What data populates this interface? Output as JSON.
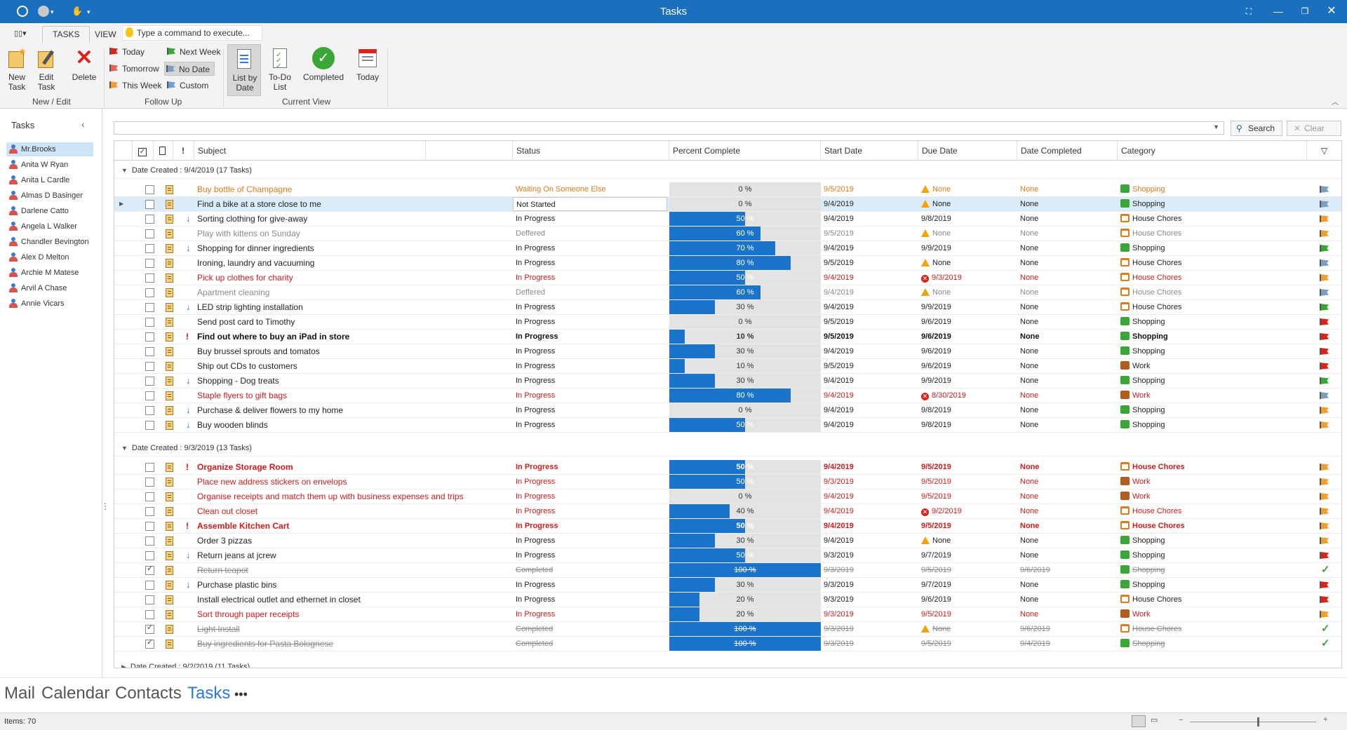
{
  "window": {
    "title": "Tasks"
  },
  "ribbon": {
    "tabs": [
      "TASKS",
      "VIEW"
    ],
    "command_placeholder": "Type a command to execute...",
    "new_task": "New Task",
    "edit_task": "Edit Task",
    "delete": "Delete",
    "group_new_edit": "New / Edit",
    "today": "Today",
    "tomorrow": "Tomorrow",
    "this_week": "This Week",
    "next_week": "Next Week",
    "no_date": "No Date",
    "custom": "Custom",
    "group_follow_up": "Follow Up",
    "list_by_date": "List by Date",
    "todo_list": "To-Do List",
    "completed": "Completed",
    "today_view": "Today",
    "group_current_view": "Current View"
  },
  "nav": {
    "header": "Tasks",
    "people": [
      "Mr.Brooks",
      "Anita W Ryan",
      "Anita L Cardle",
      "Almas D Basinger",
      "Darlene Catto",
      "Angela L Walker",
      "Chandler Bevington",
      "Alex D Melton",
      "Archie M Matese",
      "Arvil A Chase",
      "Annie Vicars"
    ],
    "selected_index": 0
  },
  "search": {
    "search_label": "Search",
    "clear_label": "Clear"
  },
  "columns": {
    "subject": "Subject",
    "status": "Status",
    "percent": "Percent Complete",
    "start": "Start Date",
    "due": "Due Date",
    "completed": "Date Completed",
    "category": "Category"
  },
  "colors": {
    "accent": "#1a6fbf",
    "progress": "#1b74c9",
    "red": "#d01b1b",
    "orange": "#e07b1c",
    "grey": "#8a8a8a"
  },
  "groups": [
    {
      "label": "Date Created : 9/4/2019 (17 Tasks)",
      "expanded": true,
      "tasks": [
        {
          "subject": "Buy bottle of Champagne",
          "status": "Waiting On Someone Else",
          "percent": 0,
          "start": "9/5/2019",
          "due": "None",
          "due_icon": "warning",
          "completed": "None",
          "category": "Shopping",
          "style": "orange",
          "priority": "",
          "flag": "blue",
          "done": false
        },
        {
          "subject": "Find a bike at a store close to me",
          "status": "Not Started",
          "percent": 0,
          "start": "9/4/2019",
          "due": "None",
          "due_icon": "warning",
          "completed": "None",
          "category": "Shopping",
          "style": "normal",
          "priority": "",
          "flag": "blue",
          "done": false,
          "selected": true
        },
        {
          "subject": "Sorting clothing for give-away",
          "status": "In Progress",
          "percent": 50,
          "start": "9/4/2019",
          "due": "9/8/2019",
          "due_icon": "",
          "completed": "None",
          "category": "House Chores",
          "style": "normal",
          "priority": "low",
          "flag": "orange",
          "done": false
        },
        {
          "subject": "Play with kittens on Sunday",
          "status": "Deffered",
          "percent": 60,
          "start": "9/5/2019",
          "due": "None",
          "due_icon": "warning",
          "completed": "None",
          "category": "House Chores",
          "style": "grey",
          "priority": "",
          "flag": "orange",
          "done": false
        },
        {
          "subject": "Shopping for dinner ingredients",
          "status": "In Progress",
          "percent": 70,
          "start": "9/4/2019",
          "due": "9/9/2019",
          "due_icon": "",
          "completed": "None",
          "category": "Shopping",
          "style": "normal",
          "priority": "low",
          "flag": "green",
          "done": false
        },
        {
          "subject": "Ironing, laundry and vacuuming",
          "status": "In Progress",
          "percent": 80,
          "start": "9/5/2019",
          "due": "None",
          "due_icon": "warning",
          "completed": "None",
          "category": "House Chores",
          "style": "normal",
          "priority": "",
          "flag": "blue",
          "done": false
        },
        {
          "subject": "Pick up clothes for charity",
          "status": "In Progress",
          "percent": 50,
          "start": "9/4/2019",
          "due": "9/3/2019",
          "due_icon": "overdue",
          "completed": "None",
          "category": "House Chores",
          "style": "red",
          "priority": "",
          "flag": "orange",
          "done": false
        },
        {
          "subject": "Apartment cleaning",
          "status": "Deffered",
          "percent": 60,
          "start": "9/4/2019",
          "due": "None",
          "due_icon": "warning",
          "completed": "None",
          "category": "House Chores",
          "style": "grey",
          "priority": "",
          "flag": "blue",
          "done": false
        },
        {
          "subject": "LED strip lighting installation",
          "status": "In Progress",
          "percent": 30,
          "start": "9/4/2019",
          "due": "9/9/2019",
          "due_icon": "",
          "completed": "None",
          "category": "House Chores",
          "style": "normal",
          "priority": "low",
          "flag": "green",
          "done": false
        },
        {
          "subject": "Send post card to Timothy",
          "status": "In Progress",
          "percent": 0,
          "start": "9/5/2019",
          "due": "9/6/2019",
          "due_icon": "",
          "completed": "None",
          "category": "Shopping",
          "style": "normal",
          "priority": "",
          "flag": "red",
          "done": false
        },
        {
          "subject": "Find out where to buy an iPad in store",
          "status": "In Progress",
          "percent": 10,
          "start": "9/5/2019",
          "due": "9/6/2019",
          "due_icon": "",
          "completed": "None",
          "category": "Shopping",
          "style": "bold",
          "priority": "high",
          "flag": "red",
          "done": false
        },
        {
          "subject": "Buy brussel sprouts and tomatos",
          "status": "In Progress",
          "percent": 30,
          "start": "9/4/2019",
          "due": "9/6/2019",
          "due_icon": "",
          "completed": "None",
          "category": "Shopping",
          "style": "normal",
          "priority": "",
          "flag": "red",
          "done": false
        },
        {
          "subject": "Ship out CDs to customers",
          "status": "In Progress",
          "percent": 10,
          "start": "9/5/2019",
          "due": "9/6/2019",
          "due_icon": "",
          "completed": "None",
          "category": "Work",
          "style": "normal",
          "priority": "",
          "flag": "red",
          "done": false
        },
        {
          "subject": "Shopping - Dog treats",
          "status": "In Progress",
          "percent": 30,
          "start": "9/4/2019",
          "due": "9/9/2019",
          "due_icon": "",
          "completed": "None",
          "category": "Shopping",
          "style": "normal",
          "priority": "low",
          "flag": "green",
          "done": false
        },
        {
          "subject": "Staple flyers to gift bags",
          "status": "In Progress",
          "percent": 80,
          "start": "9/4/2019",
          "due": "8/30/2019",
          "due_icon": "overdue",
          "completed": "None",
          "category": "Work",
          "style": "red",
          "priority": "",
          "flag": "blue",
          "done": false
        },
        {
          "subject": "Purchase & deliver flowers to my home",
          "status": "In Progress",
          "percent": 0,
          "start": "9/4/2019",
          "due": "9/8/2019",
          "due_icon": "",
          "completed": "None",
          "category": "Shopping",
          "style": "normal",
          "priority": "low",
          "flag": "orange",
          "done": false
        },
        {
          "subject": "Buy wooden blinds",
          "status": "In Progress",
          "percent": 50,
          "start": "9/4/2019",
          "due": "9/8/2019",
          "due_icon": "",
          "completed": "None",
          "category": "Shopping",
          "style": "normal",
          "priority": "low",
          "flag": "orange",
          "done": false
        }
      ]
    },
    {
      "label": "Date Created : 9/3/2019 (13 Tasks)",
      "expanded": true,
      "tasks": [
        {
          "subject": "Organize Storage Room",
          "status": "In Progress",
          "percent": 50,
          "start": "9/4/2019",
          "due": "9/5/2019",
          "due_icon": "",
          "completed": "None",
          "category": "House Chores",
          "style": "redbold",
          "priority": "high",
          "flag": "orange",
          "done": false
        },
        {
          "subject": "Place new address stickers on envelops",
          "status": "In Progress",
          "percent": 50,
          "start": "9/3/2019",
          "due": "9/5/2019",
          "due_icon": "",
          "completed": "None",
          "category": "Work",
          "style": "red",
          "priority": "",
          "flag": "orange",
          "done": false
        },
        {
          "subject": "Organise receipts and match them up with business expenses and trips",
          "status": "In Progress",
          "percent": 0,
          "start": "9/4/2019",
          "due": "9/5/2019",
          "due_icon": "",
          "completed": "None",
          "category": "Work",
          "style": "red",
          "priority": "",
          "flag": "orange",
          "done": false
        },
        {
          "subject": "Clean out closet",
          "status": "In Progress",
          "percent": 40,
          "start": "9/4/2019",
          "due": "9/2/2019",
          "due_icon": "overdue",
          "completed": "None",
          "category": "House Chores",
          "style": "red",
          "priority": "",
          "flag": "orange",
          "done": false
        },
        {
          "subject": "Assemble Kitchen Cart",
          "status": "In Progress",
          "percent": 50,
          "start": "9/4/2019",
          "due": "9/5/2019",
          "due_icon": "",
          "completed": "None",
          "category": "House Chores",
          "style": "redbold",
          "priority": "high",
          "flag": "orange",
          "done": false
        },
        {
          "subject": "Order 3 pizzas",
          "status": "In Progress",
          "percent": 30,
          "start": "9/4/2019",
          "due": "None",
          "due_icon": "warning",
          "completed": "None",
          "category": "Shopping",
          "style": "normal",
          "priority": "",
          "flag": "orange",
          "done": false
        },
        {
          "subject": "Return jeans at jcrew",
          "status": "In Progress",
          "percent": 50,
          "start": "9/3/2019",
          "due": "9/7/2019",
          "due_icon": "",
          "completed": "None",
          "category": "Shopping",
          "style": "normal",
          "priority": "low",
          "flag": "red",
          "done": false
        },
        {
          "subject": "Return teapot",
          "status": "Completed",
          "percent": 100,
          "start": "9/3/2019",
          "due": "9/5/2019",
          "due_icon": "",
          "completed": "9/6/2019",
          "category": "Shopping",
          "style": "done",
          "priority": "",
          "flag": "check",
          "done": true
        },
        {
          "subject": "Purchase plastic bins",
          "status": "In Progress",
          "percent": 30,
          "start": "9/3/2019",
          "due": "9/7/2019",
          "due_icon": "",
          "completed": "None",
          "category": "Shopping",
          "style": "normal",
          "priority": "low",
          "flag": "red",
          "done": false
        },
        {
          "subject": "Install electrical outlet and ethernet in closet",
          "status": "In Progress",
          "percent": 20,
          "start": "9/3/2019",
          "due": "9/6/2019",
          "due_icon": "",
          "completed": "None",
          "category": "House Chores",
          "style": "normal",
          "priority": "",
          "flag": "red",
          "done": false
        },
        {
          "subject": "Sort through paper receipts",
          "status": "In Progress",
          "percent": 20,
          "start": "9/3/2019",
          "due": "9/5/2019",
          "due_icon": "",
          "completed": "None",
          "category": "Work",
          "style": "red",
          "priority": "",
          "flag": "orange",
          "done": false
        },
        {
          "subject": "Light Install",
          "status": "Completed",
          "percent": 100,
          "start": "9/3/2019",
          "due": "None",
          "due_icon": "warning",
          "completed": "9/6/2019",
          "category": "House Chores",
          "style": "done",
          "priority": "",
          "flag": "check",
          "done": true
        },
        {
          "subject": "Buy ingredients for Pasta Bolognese",
          "status": "Completed",
          "percent": 100,
          "start": "9/3/2019",
          "due": "9/5/2019",
          "due_icon": "",
          "completed": "9/4/2019",
          "category": "Shopping",
          "style": "done",
          "priority": "",
          "flag": "check",
          "done": true
        }
      ]
    },
    {
      "label": "Date Created : 9/2/2019 (11 Tasks)",
      "expanded": false,
      "tasks": []
    }
  ],
  "bottom_nav": [
    "Mail",
    "Calendar",
    "Contacts",
    "Tasks",
    "•••"
  ],
  "bottom_nav_active": 3,
  "status": {
    "items": "Items: 70"
  }
}
